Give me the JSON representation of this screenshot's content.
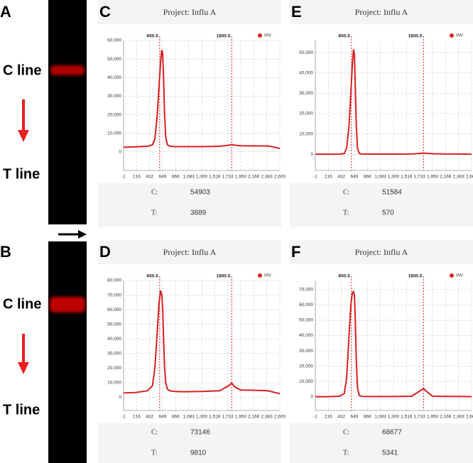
{
  "strips": [
    {
      "panel": "A",
      "c_label": "C line",
      "t_label": "T line"
    },
    {
      "panel": "B",
      "c_label": "C line",
      "t_label": "T line"
    }
  ],
  "chart_data": [
    {
      "type": "line",
      "panel": "C",
      "title": "Project: Influ A",
      "x": [
        -1,
        200,
        400,
        480,
        520,
        560,
        590,
        615,
        635,
        650,
        665,
        680,
        700,
        730,
        770,
        850,
        1000,
        1300,
        1600,
        1750,
        1800,
        1850,
        1950,
        2200,
        2400,
        2500,
        2600
      ],
      "series": [
        {
          "name": "IAV",
          "color": "#d62020",
          "values": [
            2500,
            2700,
            3000,
            3800,
            7000,
            20000,
            36000,
            48000,
            54903,
            53000,
            40000,
            22000,
            8000,
            3800,
            3000,
            2800,
            2800,
            2800,
            3000,
            3600,
            3889,
            3600,
            3300,
            3200,
            3200,
            2600,
            1800
          ]
        }
      ],
      "xlim": [
        -1,
        2600
      ],
      "xticks": [
        -1,
        216,
        432,
        649,
        866,
        {
          "value": 1083,
          "label": "1,083"
        },
        {
          "value": 1300,
          "label": "1,300"
        },
        {
          "value": 1516,
          "label": "1,516"
        },
        {
          "value": 1733,
          "label": "1,733"
        },
        {
          "value": 1950,
          "label": "1,950"
        },
        {
          "value": 2166,
          "label": "2,166"
        },
        {
          "value": 2383,
          "label": "2,383"
        },
        {
          "value": 2600,
          "label": "2,600"
        }
      ],
      "ylim": [
        -10000,
        60000
      ],
      "yticks": [
        0,
        {
          "value": 10000,
          "label": "10,000"
        },
        {
          "value": 20000,
          "label": "20,000"
        },
        {
          "value": 30000,
          "label": "30,000"
        },
        {
          "value": 40000,
          "label": "40,000"
        },
        {
          "value": 50000,
          "label": "50,000"
        },
        {
          "value": 60000,
          "label": "60,000"
        }
      ],
      "markers": [
        {
          "value": 600,
          "label": "600.0"
        },
        {
          "value": 1800,
          "label": "1800.0"
        }
      ],
      "grid": true,
      "readings": [
        {
          "label": "C:",
          "value": 54903
        },
        {
          "label": "T:",
          "value": 3889
        }
      ]
    },
    {
      "type": "line",
      "panel": "E",
      "title": "Project: Influ A",
      "x": [
        -1,
        200,
        400,
        480,
        520,
        560,
        590,
        615,
        635,
        650,
        665,
        680,
        700,
        730,
        770,
        850,
        1000,
        1300,
        1600,
        1750,
        1800,
        1850,
        1950,
        2200,
        2400,
        2500,
        2600
      ],
      "series": [
        {
          "name": "IAV",
          "color": "#d62020",
          "values": [
            0,
            0,
            50,
            300,
            3000,
            14000,
            30000,
            44000,
            51584,
            49000,
            33000,
            15000,
            3000,
            400,
            100,
            50,
            50,
            50,
            100,
            400,
            570,
            400,
            200,
            100,
            80,
            50,
            0
          ]
        }
      ],
      "xlim": [
        -1,
        2600
      ],
      "xticks": [
        -1,
        216,
        432,
        649,
        866,
        {
          "value": 1083,
          "label": "1,083"
        },
        {
          "value": 1300,
          "label": "1,300"
        },
        {
          "value": 1516,
          "label": "1,516"
        },
        {
          "value": 1733,
          "label": "1,733"
        },
        {
          "value": 1950,
          "label": "1,950"
        },
        {
          "value": 2166,
          "label": "2,166"
        },
        {
          "value": 2383,
          "label": "2,383"
        },
        {
          "value": 2600,
          "label": "2,600"
        }
      ],
      "ylim": [
        -8000,
        56000
      ],
      "yticks": [
        0,
        {
          "value": 10000,
          "label": "10,000"
        },
        {
          "value": 20000,
          "label": "20,000"
        },
        {
          "value": 30000,
          "label": "30,000"
        },
        {
          "value": 40000,
          "label": "40,000"
        },
        {
          "value": 50000,
          "label": "50,000"
        }
      ],
      "markers": [
        {
          "value": 600,
          "label": "600.0"
        },
        {
          "value": 1800,
          "label": "1800.0"
        }
      ],
      "grid": true,
      "readings": [
        {
          "label": "C:",
          "value": 51584
        },
        {
          "label": "T:",
          "value": 570
        }
      ]
    },
    {
      "type": "line",
      "panel": "D",
      "title": "Project: Influ A",
      "x": [
        -1,
        200,
        400,
        480,
        520,
        560,
        590,
        615,
        635,
        650,
        665,
        680,
        700,
        730,
        770,
        850,
        1000,
        1300,
        1600,
        1750,
        1800,
        1850,
        1950,
        2200,
        2400,
        2500,
        2600
      ],
      "series": [
        {
          "name": "IAV",
          "color": "#d62020",
          "values": [
            3000,
            3300,
            4500,
            8000,
            20000,
            45000,
            65000,
            73146,
            70000,
            60000,
            40000,
            22000,
            10000,
            5500,
            4500,
            4000,
            3800,
            4000,
            4500,
            8000,
            9810,
            7000,
            5000,
            4800,
            4500,
            3500,
            2500
          ]
        }
      ],
      "xlim": [
        -1,
        2600
      ],
      "xticks": [
        -1,
        216,
        432,
        649,
        866,
        {
          "value": 1083,
          "label": "1,083"
        },
        {
          "value": 1300,
          "label": "1,300"
        },
        {
          "value": 1516,
          "label": "1,516"
        },
        {
          "value": 1733,
          "label": "1,733"
        },
        {
          "value": 1950,
          "label": "1,950"
        },
        {
          "value": 2166,
          "label": "2,166"
        },
        {
          "value": 2383,
          "label": "2,383"
        },
        {
          "value": 2600,
          "label": "2,600"
        }
      ],
      "ylim": [
        -9000,
        80000
      ],
      "yticks": [
        0,
        {
          "value": 10000,
          "label": "10,000"
        },
        {
          "value": 20000,
          "label": "20,000"
        },
        {
          "value": 30000,
          "label": "30,000"
        },
        {
          "value": 40000,
          "label": "40,000"
        },
        {
          "value": 50000,
          "label": "50,000"
        },
        {
          "value": 60000,
          "label": "60,000"
        },
        {
          "value": 70000,
          "label": "70,000"
        },
        {
          "value": 80000,
          "label": "80,000"
        }
      ],
      "markers": [
        {
          "value": 600,
          "label": "600.0"
        },
        {
          "value": 1800,
          "label": "1800.0"
        }
      ],
      "grid": true,
      "readings": [
        {
          "label": "C:",
          "value": 73146
        },
        {
          "label": "T:",
          "value": 9810
        }
      ]
    },
    {
      "type": "line",
      "panel": "F",
      "title": "Project: Influ A",
      "x": [
        -1,
        200,
        400,
        480,
        520,
        560,
        590,
        615,
        635,
        650,
        665,
        680,
        700,
        730,
        770,
        850,
        1000,
        1300,
        1600,
        1750,
        1800,
        1850,
        1950,
        2200,
        2400,
        2500,
        2600
      ],
      "series": [
        {
          "name": "IAV",
          "color": "#d62020",
          "values": [
            0,
            0,
            300,
            2000,
            12000,
            40000,
            60000,
            68000,
            68677,
            66000,
            50000,
            25000,
            6000,
            800,
            200,
            100,
            100,
            100,
            300,
            4000,
            5341,
            3500,
            300,
            200,
            200,
            100,
            0
          ]
        }
      ],
      "xlim": [
        -1,
        2600
      ],
      "xticks": [
        -1,
        216,
        432,
        649,
        866,
        {
          "value": 1083,
          "label": "1,083"
        },
        {
          "value": 1300,
          "label": "1,300"
        },
        {
          "value": 1516,
          "label": "1,516"
        },
        {
          "value": 1733,
          "label": "1,733"
        },
        {
          "value": 1950,
          "label": "1,950"
        },
        {
          "value": 2166,
          "label": "2,166"
        },
        {
          "value": 2383,
          "label": "2,383"
        },
        {
          "value": 2600,
          "label": "2,600"
        }
      ],
      "ylim": [
        -9000,
        76000
      ],
      "yticks": [
        0,
        {
          "value": 10000,
          "label": "10,000"
        },
        {
          "value": 20000,
          "label": "20,000"
        },
        {
          "value": 30000,
          "label": "30,000"
        },
        {
          "value": 40000,
          "label": "40,000"
        },
        {
          "value": 50000,
          "label": "50,000"
        },
        {
          "value": 60000,
          "label": "60,000"
        },
        {
          "value": 70000,
          "label": "70,000"
        }
      ],
      "markers": [
        {
          "value": 600,
          "label": "600.0"
        },
        {
          "value": 1800,
          "label": "1800.0"
        }
      ],
      "grid": true,
      "readings": [
        {
          "label": "C:",
          "value": 68677
        },
        {
          "label": "T:",
          "value": 5341
        }
      ]
    }
  ]
}
